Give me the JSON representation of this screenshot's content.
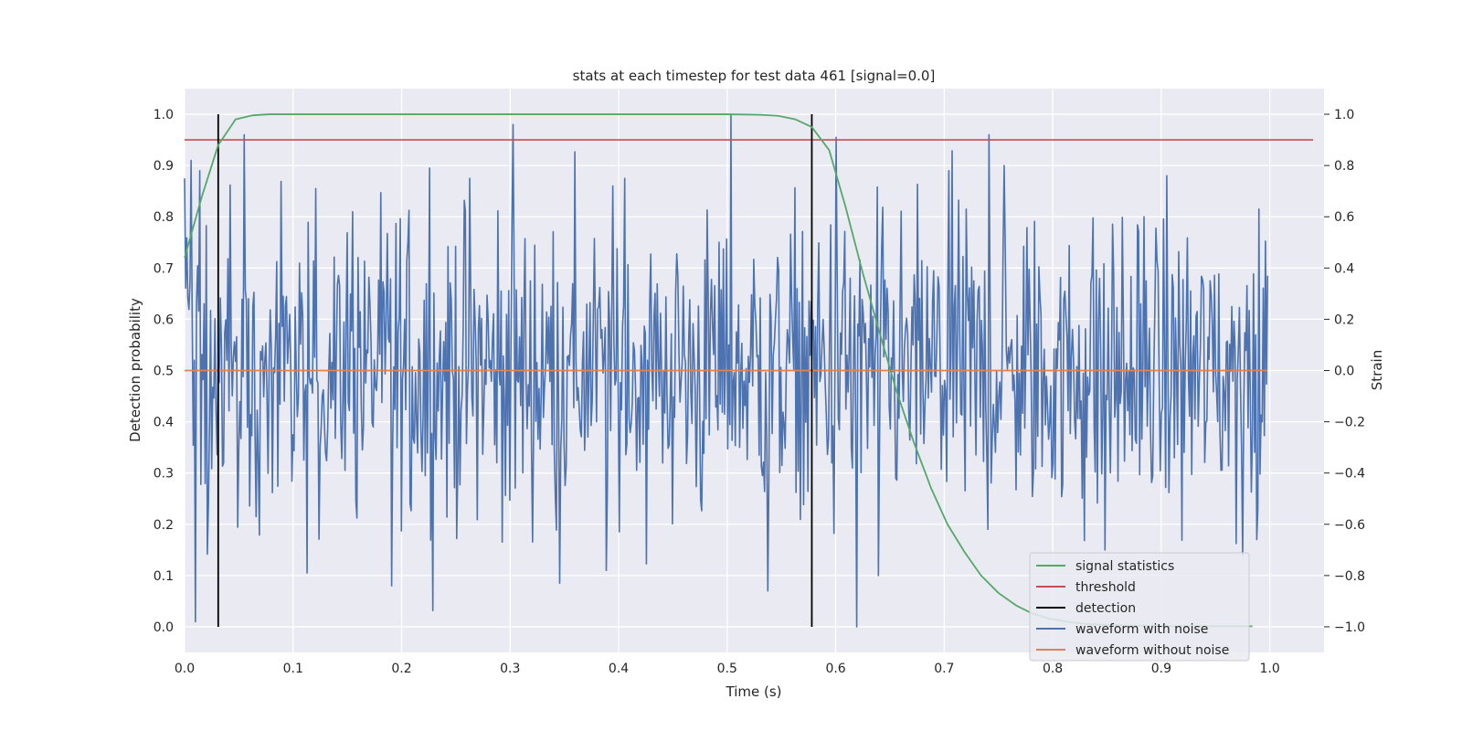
{
  "chart_data": {
    "type": "line",
    "title": "stats at each timestep for test data 461 [signal=0.0]",
    "xlabel": "Time (s)",
    "ylabel_left": "Detection probability",
    "ylabel_right": "Strain",
    "xlim": [
      0.0,
      1.05
    ],
    "ylim_left": [
      -0.05,
      1.05
    ],
    "ylim_right": [
      -1.1,
      1.1
    ],
    "x_ticks": [
      "0.0",
      "0.1",
      "0.2",
      "0.3",
      "0.4",
      "0.5",
      "0.6",
      "0.7",
      "0.8",
      "0.9",
      "1.0"
    ],
    "y_left_ticks": [
      "0.0",
      "0.1",
      "0.2",
      "0.3",
      "0.4",
      "0.5",
      "0.6",
      "0.7",
      "0.8",
      "0.9",
      "1.0"
    ],
    "y_right_ticks": [
      "−1.0",
      "−0.8",
      "−0.6",
      "−0.4",
      "−0.2",
      "0.0",
      "0.2",
      "0.4",
      "0.6",
      "0.8",
      "1.0"
    ],
    "grid": true,
    "legend_position": "bottom-right",
    "colors": {
      "background": "#eaeaf2",
      "grid": "#ffffff",
      "signal": "#55a868",
      "threshold": "#c44e52",
      "detection": "#000000",
      "noisy": "#4c72b0",
      "clean": "#dd8452"
    },
    "series": [
      {
        "name": "signal statistics",
        "axis": "left",
        "x": [
          0.0,
          0.016,
          0.031,
          0.047,
          0.063,
          0.078,
          0.1,
          0.2,
          0.3,
          0.4,
          0.5,
          0.53,
          0.547,
          0.563,
          0.578,
          0.594,
          0.609,
          0.625,
          0.641,
          0.656,
          0.672,
          0.688,
          0.703,
          0.719,
          0.734,
          0.75,
          0.766,
          0.781,
          0.797,
          0.813,
          0.828,
          0.844,
          0.86,
          0.875,
          0.891,
          0.906,
          0.922,
          0.938,
          0.953,
          0.969,
          0.984
        ],
        "values": [
          0.72,
          0.84,
          0.94,
          0.99,
          0.998,
          1.0,
          1.0,
          1.0,
          1.0,
          1.0,
          1.0,
          0.999,
          0.997,
          0.99,
          0.975,
          0.93,
          0.82,
          0.69,
          0.57,
          0.46,
          0.36,
          0.27,
          0.2,
          0.145,
          0.1,
          0.066,
          0.042,
          0.026,
          0.016,
          0.01,
          0.006,
          0.004,
          0.003,
          0.002,
          0.002,
          0.001,
          0.001,
          0.001,
          0.001,
          0.001,
          0.001
        ]
      },
      {
        "name": "threshold",
        "axis": "left",
        "x": [
          0.0,
          1.04
        ],
        "values": [
          0.95,
          0.95
        ]
      },
      {
        "name": "detection",
        "axis": "left",
        "x": [
          0.031,
          0.578
        ],
        "y_range": [
          0.0,
          1.0
        ]
      },
      {
        "name": "waveform with noise",
        "axis": "right",
        "x_range": [
          0.0,
          0.998
        ],
        "n_points": 1000,
        "spikes": [
          {
            "x": 0.0,
            "value": 0.75
          },
          {
            "x": 0.006,
            "value": 0.82
          },
          {
            "x": 0.01,
            "value": -0.98
          },
          {
            "x": 0.014,
            "value": 0.78
          },
          {
            "x": 0.022,
            "value": -0.52
          },
          {
            "x": 0.055,
            "value": 0.92
          },
          {
            "x": 0.066,
            "value": -0.57
          },
          {
            "x": 0.113,
            "value": -0.79
          },
          {
            "x": 0.121,
            "value": 0.71
          },
          {
            "x": 0.155,
            "value": 0.62
          },
          {
            "x": 0.191,
            "value": -0.84
          },
          {
            "x": 0.226,
            "value": 0.79
          },
          {
            "x": 0.263,
            "value": 0.75
          },
          {
            "x": 0.303,
            "value": 0.96
          },
          {
            "x": 0.346,
            "value": -0.83
          },
          {
            "x": 0.389,
            "value": -0.78
          },
          {
            "x": 0.406,
            "value": 0.75
          },
          {
            "x": 0.503,
            "value": 1.0
          },
          {
            "x": 0.537,
            "value": -0.86
          },
          {
            "x": 0.6,
            "value": 0.91
          },
          {
            "x": 0.619,
            "value": -1.0
          },
          {
            "x": 0.639,
            "value": -0.8
          },
          {
            "x": 0.704,
            "value": 0.78
          },
          {
            "x": 0.741,
            "value": 0.92
          },
          {
            "x": 0.755,
            "value": 0.8
          },
          {
            "x": 0.848,
            "value": -0.7
          },
          {
            "x": 0.905,
            "value": 0.76
          },
          {
            "x": 0.975,
            "value": -0.72
          },
          {
            "x": 0.99,
            "value": 0.63
          },
          {
            "x": 0.998,
            "value": 0.37
          }
        ],
        "noise_amplitude": 0.3
      },
      {
        "name": "waveform without noise",
        "axis": "right",
        "x": [
          0.0,
          0.998
        ],
        "values": [
          0.0,
          0.0
        ]
      }
    ]
  }
}
